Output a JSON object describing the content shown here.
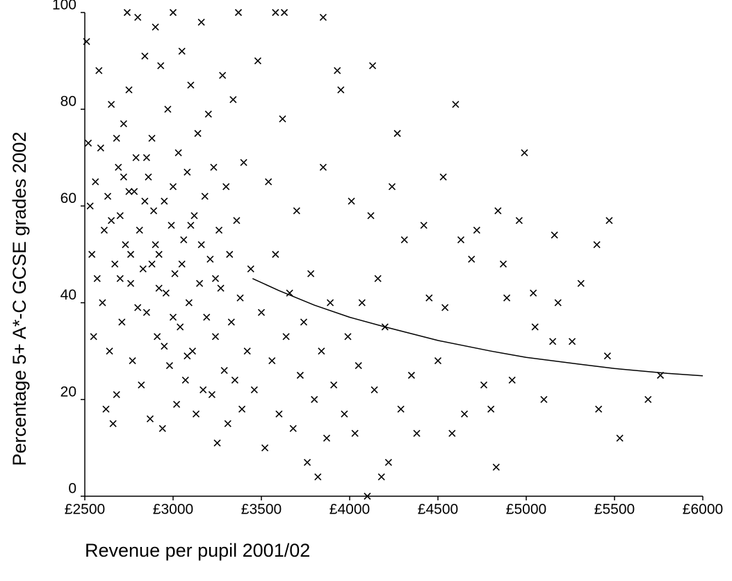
{
  "chart_data": {
    "type": "scatter",
    "xlabel": "Revenue per pupil 2001/02",
    "ylabel": "Percentage 5+ A*-C GCSE grades 2002",
    "color": "#000000",
    "xlim": [
      2500,
      6000
    ],
    "ylim": [
      0,
      100
    ],
    "xticks": [
      {
        "value": 2500,
        "label": "£2500"
      },
      {
        "value": 3000,
        "label": "£3000"
      },
      {
        "value": 3500,
        "label": "£3500"
      },
      {
        "value": 4000,
        "label": "£4000"
      },
      {
        "value": 4500,
        "label": "£4500"
      },
      {
        "value": 5000,
        "label": "£5000"
      },
      {
        "value": 5500,
        "label": "£5500"
      },
      {
        "value": 6000,
        "label": "£6000"
      }
    ],
    "yticks": [
      0,
      20,
      40,
      60,
      80,
      100
    ],
    "x": [
      2510,
      2520,
      2530,
      2540,
      2550,
      2560,
      2570,
      2580,
      2590,
      2600,
      2610,
      2620,
      2630,
      2640,
      2650,
      2660,
      2670,
      2680,
      2690,
      2700,
      2710,
      2720,
      2730,
      2740,
      2750,
      2760,
      2770,
      2780,
      2790,
      2800,
      2810,
      2820,
      2830,
      2840,
      2850,
      2860,
      2870,
      2880,
      2890,
      2900,
      2910,
      2920,
      2930,
      2940,
      2950,
      2960,
      2970,
      2980,
      2990,
      3000,
      3010,
      3020,
      3030,
      3040,
      3050,
      3060,
      3070,
      3080,
      3090,
      3100,
      3110,
      3120,
      3130,
      3140,
      3150,
      3160,
      3170,
      3180,
      3190,
      3200,
      3210,
      3220,
      3230,
      3240,
      3250,
      3260,
      3270,
      3280,
      3290,
      3300,
      3310,
      3320,
      3330,
      3340,
      3350,
      3360,
      3370,
      3380,
      3390,
      3400,
      3420,
      3440,
      3460,
      3480,
      3500,
      3520,
      3540,
      3560,
      3580,
      3600,
      3620,
      3640,
      3660,
      3680,
      3700,
      3720,
      3740,
      3760,
      3780,
      3800,
      3820,
      3840,
      3850,
      3870,
      3890,
      3910,
      3930,
      3950,
      3970,
      3990,
      4010,
      4030,
      4050,
      4070,
      4100,
      4120,
      4130,
      4140,
      4160,
      4180,
      4200,
      4220,
      4240,
      4270,
      4290,
      4310,
      4350,
      4380,
      4420,
      4450,
      4500,
      4530,
      4540,
      4580,
      4600,
      4630,
      4650,
      4690,
      4720,
      4760,
      4800,
      4830,
      4840,
      4870,
      4890,
      4920,
      4960,
      4990,
      5040,
      5050,
      5100,
      5150,
      5160,
      5180,
      5260,
      5310,
      5400,
      5410,
      5460,
      5470,
      5530,
      5690,
      5760,
      2650,
      2700,
      2750,
      2800,
      2850,
      2900,
      2950,
      3000,
      3050,
      3100,
      2680,
      2760,
      2840,
      2920,
      3000,
      3080,
      3160,
      3240,
      2720,
      2880,
      3630,
      3850,
      3580
    ],
    "values": [
      94,
      73,
      60,
      50,
      33,
      65,
      45,
      88,
      72,
      40,
      55,
      18,
      62,
      30,
      81,
      15,
      48,
      21,
      68,
      58,
      36,
      77,
      52,
      100,
      84,
      44,
      28,
      63,
      70,
      99,
      55,
      23,
      47,
      91,
      38,
      66,
      16,
      74,
      59,
      97,
      33,
      50,
      89,
      14,
      61,
      42,
      80,
      27,
      56,
      100,
      46,
      19,
      71,
      35,
      92,
      53,
      24,
      67,
      40,
      85,
      30,
      58,
      17,
      75,
      44,
      98,
      22,
      62,
      37,
      79,
      49,
      21,
      68,
      33,
      11,
      55,
      43,
      87,
      26,
      64,
      15,
      50,
      36,
      82,
      24,
      57,
      100,
      41,
      18,
      69,
      30,
      47,
      22,
      90,
      38,
      10,
      65,
      28,
      50,
      17,
      78,
      33,
      42,
      14,
      59,
      25,
      36,
      7,
      46,
      20,
      4,
      30,
      68,
      12,
      40,
      23,
      88,
      84,
      17,
      33,
      61,
      13,
      27,
      40,
      0,
      58,
      89,
      22,
      45,
      4,
      35,
      7,
      64,
      75,
      18,
      53,
      25,
      13,
      56,
      41,
      28,
      66,
      39,
      13,
      81,
      53,
      17,
      49,
      55,
      23,
      18,
      6,
      59,
      48,
      41,
      24,
      57,
      71,
      42,
      35,
      20,
      32,
      54,
      40,
      32,
      44,
      52,
      18,
      29,
      57,
      12,
      20,
      25,
      57,
      45,
      63,
      39,
      70,
      52,
      31,
      64,
      48,
      56,
      74,
      50,
      61,
      43,
      37,
      29,
      52,
      45,
      66,
      48,
      100,
      99,
      100
    ],
    "trend": {
      "x": [
        3450,
        3600,
        3800,
        4000,
        4200,
        4500,
        4800,
        5000,
        5300,
        5500,
        5800,
        6000
      ],
      "values": [
        45,
        42.5,
        39.5,
        37,
        35,
        32.2,
        30,
        28.7,
        27.3,
        26.4,
        25.4,
        24.9
      ]
    }
  }
}
